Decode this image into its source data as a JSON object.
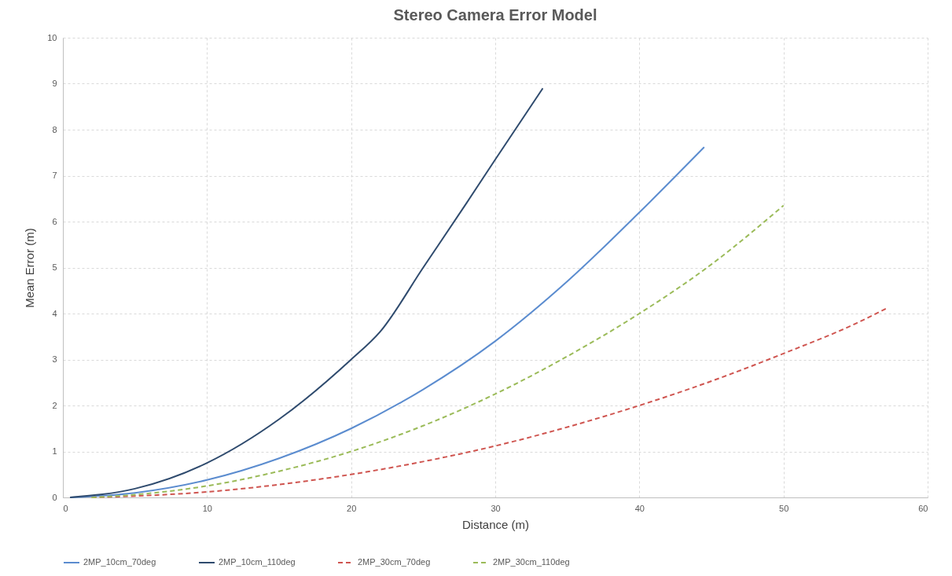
{
  "chart_data": {
    "type": "line",
    "title": "Stereo Camera Error Model",
    "xlabel": "Distance (m)",
    "ylabel": "Mean Error (m)",
    "xlim": [
      0,
      60
    ],
    "xticks": [
      0,
      10,
      20,
      30,
      40,
      50,
      60
    ],
    "ylim": [
      0,
      10
    ],
    "yticks": [
      0,
      1,
      2,
      3,
      4,
      5,
      6,
      7,
      8,
      9,
      10
    ],
    "grid": true,
    "legend": "bottom",
    "marker": "none",
    "series": [
      {
        "name": "2MP_10cm_70deg",
        "color": "#5b8ccf",
        "line_style": "solid",
        "x": [
          0.5,
          5,
          10,
          15,
          20,
          25,
          30,
          35,
          40,
          44.5
        ],
        "values": [
          0,
          0.1,
          0.38,
          0.85,
          1.5,
          2.35,
          3.4,
          4.7,
          6.2,
          7.62
        ]
      },
      {
        "name": "2MP_10cm_110deg",
        "color": "#2f4b6e",
        "line_style": "solid",
        "x": [
          0.5,
          5,
          10,
          15,
          20,
          22,
          25,
          28,
          30,
          33.3
        ],
        "values": [
          0,
          0.19,
          0.75,
          1.7,
          3.0,
          3.6,
          5.0,
          6.4,
          7.35,
          8.9
        ]
      },
      {
        "name": "2MP_30cm_70deg",
        "color": "#cf5550",
        "line_style": "dashed",
        "x": [
          2,
          5,
          10,
          15,
          20,
          25,
          30,
          35,
          40,
          45,
          50,
          55,
          57.2
        ],
        "values": [
          0,
          0.03,
          0.12,
          0.28,
          0.5,
          0.78,
          1.12,
          1.53,
          2.0,
          2.53,
          3.13,
          3.78,
          4.12
        ]
      },
      {
        "name": "2MP_30cm_110deg",
        "color": "#9bbb59",
        "line_style": "dashed",
        "x": [
          2,
          5,
          10,
          15,
          20,
          25,
          30,
          35,
          40,
          45,
          50
        ],
        "values": [
          0,
          0.06,
          0.25,
          0.57,
          1.0,
          1.56,
          2.25,
          3.07,
          4.0,
          5.07,
          6.35
        ]
      }
    ]
  }
}
